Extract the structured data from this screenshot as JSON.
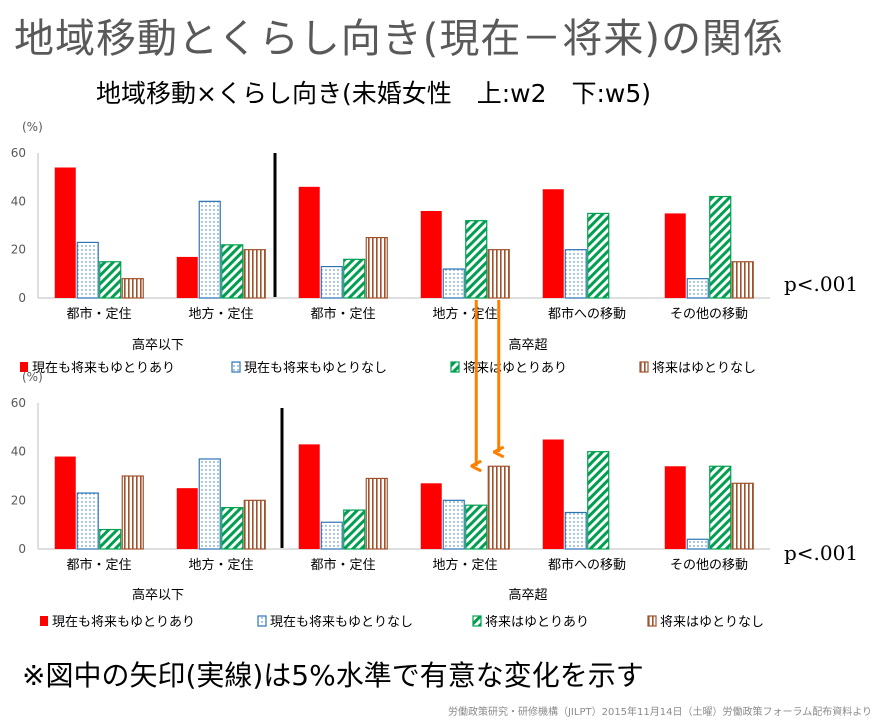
{
  "slide": {
    "title": "地域移動とくらし向き(現在－将来)の関係",
    "subtitle": "地域移動×くらし向き(未婚女性　上:w2　下:w5)",
    "note": "※図中の矢印(実線)は5%水準で有意な変化を示す",
    "footer": "労働政策研究・研修機構（JILPT）2015年11月14日（土曜）労働政策フォーラム配布資料より"
  },
  "colors": {
    "now_and_future_yes": "#ff0000",
    "now_and_future_no": "#2e75b6",
    "future_yes": "#00a050",
    "future_no": "#a0522d",
    "arrow": "#ff7f00"
  },
  "chart_data": [
    {
      "type": "bar",
      "ylabel": "(%)",
      "ylim": [
        0,
        60
      ],
      "yticks": [
        0,
        20,
        40,
        60
      ],
      "categories": [
        "都市・定住",
        "地方・定住",
        "都市・定住",
        "地方・定住",
        "都市への移動",
        "その他の移動"
      ],
      "groups": [
        {
          "label": "高卒以下",
          "categories": [
            0,
            1
          ]
        },
        {
          "label": "高卒超",
          "categories": [
            2,
            3,
            4,
            5
          ]
        }
      ],
      "series": [
        {
          "name": "現在も将来もゆとりあり",
          "values": [
            54,
            17,
            46,
            36,
            45,
            35
          ]
        },
        {
          "name": "現在も将来もゆとりなし",
          "values": [
            23,
            40,
            13,
            12,
            20,
            8
          ]
        },
        {
          "name": "将来はゆとりあり",
          "values": [
            15,
            22,
            16,
            32,
            35,
            42
          ]
        },
        {
          "name": "将来はゆとりなし",
          "values": [
            8,
            20,
            25,
            20,
            null,
            15
          ]
        }
      ],
      "p_value": "p<.001",
      "legend": "bottom"
    },
    {
      "type": "bar",
      "ylabel": "(%)",
      "ylim": [
        0,
        60
      ],
      "yticks": [
        0,
        20,
        40,
        60
      ],
      "categories": [
        "都市・定住",
        "地方・定住",
        "都市・定住",
        "地方・定住",
        "都市への移動",
        "その他の移動"
      ],
      "groups": [
        {
          "label": "高卒以下",
          "categories": [
            0,
            1
          ]
        },
        {
          "label": "高卒超",
          "categories": [
            2,
            3,
            4,
            5
          ]
        }
      ],
      "series": [
        {
          "name": "現在も将来もゆとりあり",
          "values": [
            38,
            25,
            43,
            27,
            45,
            34
          ]
        },
        {
          "name": "現在も将来もゆとりなし",
          "values": [
            23,
            37,
            11,
            20,
            15,
            4
          ]
        },
        {
          "name": "将来はゆとりあり",
          "values": [
            8,
            17,
            16,
            18,
            40,
            34
          ]
        },
        {
          "name": "将来はゆとりなし",
          "values": [
            30,
            20,
            29,
            34,
            null,
            27
          ]
        }
      ],
      "p_value": "p<.001",
      "legend": "bottom"
    }
  ]
}
